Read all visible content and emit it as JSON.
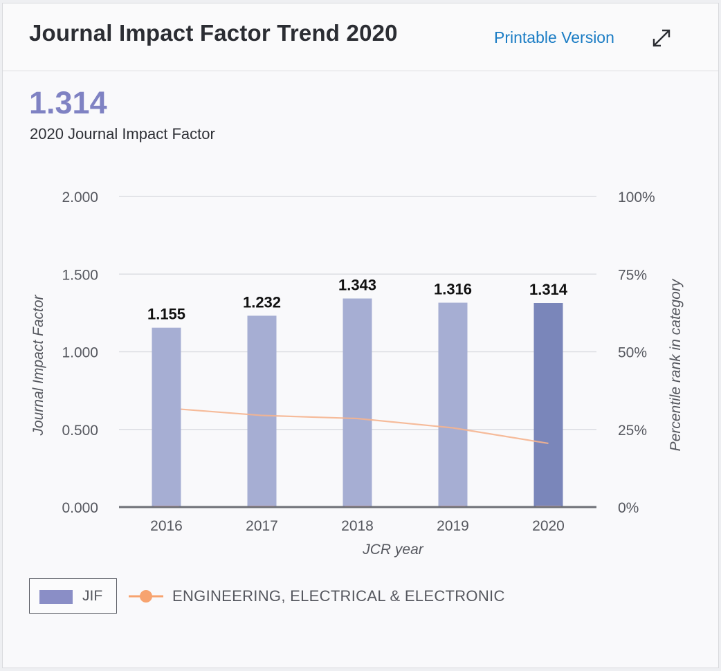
{
  "header": {
    "title": "Journal Impact Factor Trend 2020",
    "printable_label": "Printable Version",
    "expand_icon": "expand-arrows-icon"
  },
  "summary": {
    "value": "1.314",
    "label": "2020 Journal Impact Factor"
  },
  "colors": {
    "bar": "#a6aed3",
    "bar_highlight": "#7a86ba",
    "line": "#f5b48f",
    "marker": "#f7a36f",
    "title_value": "#7f82c3",
    "link": "#1a7cc4"
  },
  "chart_data": {
    "type": "bar",
    "categories": [
      "2016",
      "2017",
      "2018",
      "2019",
      "2020"
    ],
    "series": [
      {
        "name": "JIF",
        "axis": "left",
        "values": [
          1.155,
          1.232,
          1.343,
          1.316,
          1.314
        ],
        "labels": [
          "1.155",
          "1.232",
          "1.343",
          "1.316",
          "1.314"
        ],
        "highlight_index": 4
      },
      {
        "name": "ENGINEERING, ELECTRICAL & ELECTRONIC",
        "axis": "right",
        "type": "line",
        "values": [
          31.5,
          29.5,
          28.5,
          25.5,
          20.5
        ]
      }
    ],
    "xlabel": "JCR year",
    "ylabel": "Journal Impact Factor",
    "y2label": "Percentile rank in category",
    "ylim": [
      0,
      2
    ],
    "y2lim": [
      0,
      100
    ],
    "yticks": [
      "0.000",
      "0.500",
      "1.000",
      "1.500",
      "2.000"
    ],
    "y2ticks": [
      "0%",
      "25%",
      "50%",
      "75%",
      "100%"
    ],
    "grid": true
  },
  "legend": {
    "jif_label": "JIF",
    "line_label": "ENGINEERING, ELECTRICAL & ELECTRONIC"
  }
}
